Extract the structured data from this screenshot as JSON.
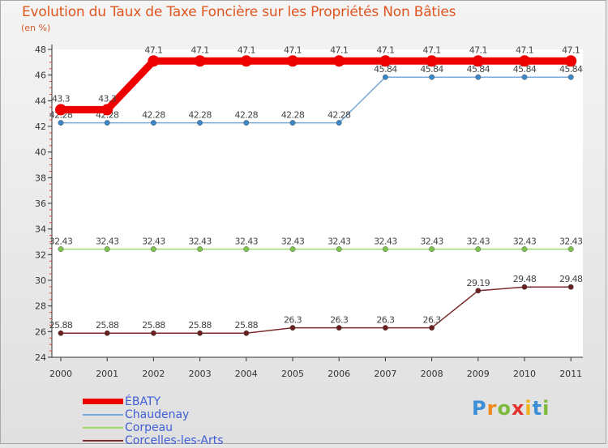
{
  "chart_data": {
    "type": "line",
    "title": "Evolution du Taux de Taxe Foncière sur les Propriétés Non Bâties",
    "unit": "(en %)",
    "xlabel": "",
    "ylabel": "",
    "categories": [
      "2000",
      "2001",
      "2002",
      "2003",
      "2004",
      "2005",
      "2006",
      "2007",
      "2008",
      "2009",
      "2010",
      "2011"
    ],
    "ylim": [
      24,
      48
    ],
    "yticks": [
      24,
      26,
      28,
      30,
      32,
      34,
      36,
      38,
      40,
      42,
      44,
      46,
      48
    ],
    "legend_position": "bottom-left",
    "series": [
      {
        "name": "ÉBATY",
        "color": "#ee0000",
        "width": 9,
        "marker_r": 7,
        "label_above": true,
        "values": [
          43.3,
          43.3,
          47.1,
          47.1,
          47.1,
          47.1,
          47.1,
          47.1,
          47.1,
          47.1,
          47.1,
          47.1
        ],
        "labels": [
          "43.3",
          "43.3",
          "47.1",
          "47.1",
          "47.1",
          "47.1",
          "47.1",
          "47.1",
          "47.1",
          "47.1",
          "47.1",
          "47.1"
        ]
      },
      {
        "name": "Chaudenay",
        "color": "#79a9d8",
        "marker": "#3b86c6",
        "width": 1.5,
        "marker_r": 3.2,
        "label_above": true,
        "values": [
          42.28,
          42.28,
          42.28,
          42.28,
          42.28,
          42.28,
          42.28,
          45.84,
          45.84,
          45.84,
          45.84,
          45.84
        ],
        "labels": [
          "42.28",
          "42.28",
          "42.28",
          "42.28",
          "42.28",
          "42.28",
          "42.28",
          "45.84",
          "45.84",
          "45.84",
          "45.84",
          "45.84"
        ]
      },
      {
        "name": "Corpeau",
        "color": "#9ed86c",
        "marker": "#7cc54a",
        "width": 1.5,
        "marker_r": 3.2,
        "label_above": true,
        "values": [
          32.43,
          32.43,
          32.43,
          32.43,
          32.43,
          32.43,
          32.43,
          32.43,
          32.43,
          32.43,
          32.43,
          32.43
        ],
        "labels": [
          "32.43",
          "32.43",
          "32.43",
          "32.43",
          "32.43",
          "32.43",
          "32.43",
          "32.43",
          "32.43",
          "32.43",
          "32.43",
          "32.43"
        ]
      },
      {
        "name": "Corcelles-les-Arts",
        "color": "#7a2a2a",
        "marker": "#6a1f1f",
        "width": 1.5,
        "marker_r": 3.2,
        "label_above": true,
        "values": [
          25.88,
          25.88,
          25.88,
          25.88,
          25.88,
          26.3,
          26.3,
          26.3,
          26.3,
          29.19,
          29.48,
          29.48
        ],
        "labels": [
          "25.88",
          "25.88",
          "25.88",
          "25.88",
          "25.88",
          "26.3",
          "26.3",
          "26.3",
          "26.3",
          "29.19",
          "29.48",
          "29.48"
        ]
      }
    ]
  },
  "brand": {
    "letters": [
      "P",
      "r",
      "o",
      "x",
      "i",
      "t",
      "i"
    ],
    "colors": [
      "#3c8fd6",
      "#f08a1c",
      "#7dbb3a",
      "#e2312d",
      "#f0b21c",
      "#3c8fd6",
      "#7dbb3a"
    ]
  }
}
